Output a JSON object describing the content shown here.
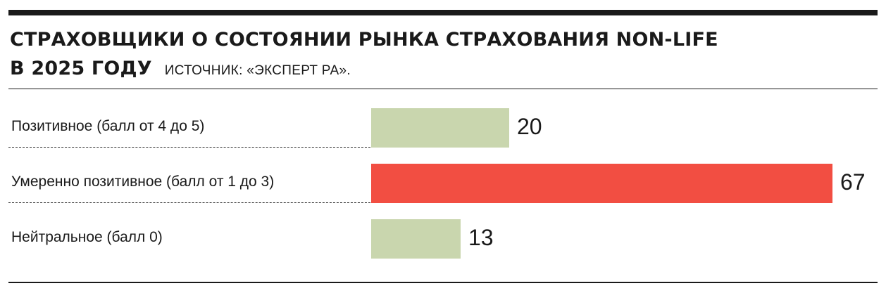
{
  "title_line1": "СТРАХОВЩИКИ О СОСТОЯНИИ РЫНКА СТРАХОВАНИЯ NON-LIFE",
  "title_line2": "В 2025 ГОДУ",
  "source": "ИСТОЧНИК: «ЭКСПЕРТ РА».",
  "colors": {
    "highlight": "#f24e42",
    "default": "#c9d6ae",
    "text": "#1a1a1a"
  },
  "chart_data": {
    "type": "bar",
    "orientation": "horizontal",
    "categories": [
      "Позитивное (балл от 4 до 5)",
      "Умеренно позитивное (балл от 1 до 3)",
      "Нейтральное (балл 0)"
    ],
    "values": [
      20,
      67,
      13
    ],
    "value_labels": [
      "20",
      "67",
      "13"
    ],
    "highlighted_index": 1,
    "xlim": [
      0,
      67
    ],
    "grid": false,
    "legend": "none"
  }
}
